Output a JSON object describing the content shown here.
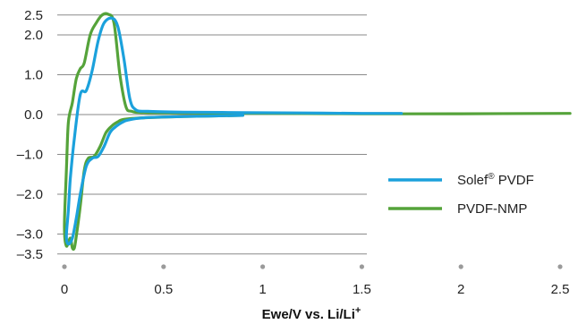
{
  "chart_data": {
    "type": "line",
    "title": "",
    "xlabel": "Ewe/V vs. Li/Li+",
    "ylabel": "",
    "xlim": [
      0,
      2.55
    ],
    "ylim": [
      -3.5,
      2.5
    ],
    "xticks": [
      "0",
      "0.5",
      "1",
      "1.5",
      "2",
      "2.5"
    ],
    "yticks": [
      "2.5",
      "2.0",
      "1.0",
      "0.0",
      "–1.0",
      "–2.0",
      "–3.0",
      "–3.5"
    ],
    "grid": "horizontal",
    "legend_position": "lower-right",
    "series": [
      {
        "name": "Solef® PVDF",
        "color": "#1ba1dc",
        "x": [
          0.9,
          0.6,
          0.4,
          0.32,
          0.29,
          0.26,
          0.23,
          0.2,
          0.17,
          0.14,
          0.11,
          0.08,
          0.06,
          0.04,
          0.02,
          0.01,
          0.02,
          0.03,
          0.05,
          0.08,
          0.11,
          0.14,
          0.17,
          0.2,
          0.24,
          0.27,
          0.3,
          0.33,
          0.36,
          0.42,
          0.6,
          0.9,
          1.2,
          1.5,
          1.7
        ],
        "y": [
          -0.02,
          -0.05,
          -0.08,
          -0.14,
          -0.2,
          -0.3,
          -0.45,
          -0.8,
          -1.05,
          -1.1,
          -1.3,
          -2.0,
          -2.6,
          -3.1,
          -3.25,
          -3.05,
          -2.4,
          -1.6,
          -0.6,
          0.5,
          0.6,
          1.1,
          1.85,
          2.3,
          2.42,
          2.2,
          1.4,
          0.4,
          0.12,
          0.08,
          0.06,
          0.05,
          0.04,
          0.03,
          0.03
        ]
      },
      {
        "name": "PVDF-NMP",
        "color": "#55a33a",
        "x": [
          0.9,
          0.6,
          0.4,
          0.3,
          0.27,
          0.24,
          0.21,
          0.18,
          0.15,
          0.12,
          0.1,
          0.08,
          0.06,
          0.05,
          0.04,
          0.03,
          0.01,
          0.0,
          0.01,
          0.02,
          0.04,
          0.06,
          0.08,
          0.1,
          0.13,
          0.16,
          0.19,
          0.22,
          0.25,
          0.28,
          0.31,
          0.34,
          0.4,
          0.6,
          1.0,
          1.5,
          2.0,
          2.55
        ],
        "y": [
          -0.02,
          -0.05,
          -0.08,
          -0.12,
          -0.18,
          -0.28,
          -0.45,
          -0.8,
          -1.05,
          -1.1,
          -1.4,
          -2.3,
          -3.05,
          -3.35,
          -3.35,
          -3.1,
          -3.3,
          -2.8,
          -1.4,
          -0.2,
          0.3,
          0.9,
          1.15,
          1.3,
          2.0,
          2.3,
          2.5,
          2.52,
          2.3,
          1.0,
          0.2,
          0.08,
          0.05,
          0.04,
          0.03,
          0.02,
          0.02,
          0.03
        ]
      }
    ]
  }
}
